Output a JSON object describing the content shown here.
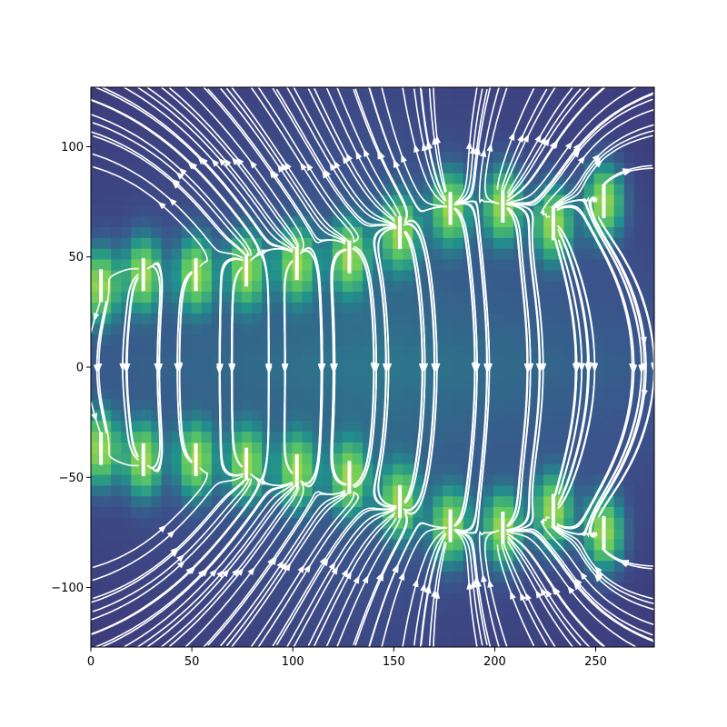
{
  "chart_data": {
    "type": "heatmap",
    "title": "",
    "xlabel": "",
    "ylabel": "",
    "xlim": [
      0,
      279
    ],
    "ylim": [
      -127,
      127
    ],
    "x_ticks": [
      0,
      50,
      100,
      150,
      200,
      250
    ],
    "y_ticks": [
      -100,
      -50,
      0,
      50,
      100
    ],
    "colormap": "viridis",
    "overlay": "streamlines",
    "stream_color": "#ffffff",
    "sources": [
      {
        "x": 5,
        "y": 37
      },
      {
        "x": 26,
        "y": 42
      },
      {
        "x": 52,
        "y": 42
      },
      {
        "x": 77,
        "y": 44
      },
      {
        "x": 102,
        "y": 47
      },
      {
        "x": 128,
        "y": 50
      },
      {
        "x": 153,
        "y": 61
      },
      {
        "x": 178,
        "y": 72
      },
      {
        "x": 204,
        "y": 73
      },
      {
        "x": 229,
        "y": 65
      },
      {
        "x": 254,
        "y": 75
      },
      {
        "x": 5,
        "y": -37
      },
      {
        "x": 26,
        "y": -42
      },
      {
        "x": 52,
        "y": -42
      },
      {
        "x": 77,
        "y": -44
      },
      {
        "x": 102,
        "y": -47
      },
      {
        "x": 128,
        "y": -50
      },
      {
        "x": 153,
        "y": -61
      },
      {
        "x": 178,
        "y": -72
      },
      {
        "x": 204,
        "y": -73
      },
      {
        "x": 229,
        "y": -65
      },
      {
        "x": 254,
        "y": -75
      }
    ]
  }
}
